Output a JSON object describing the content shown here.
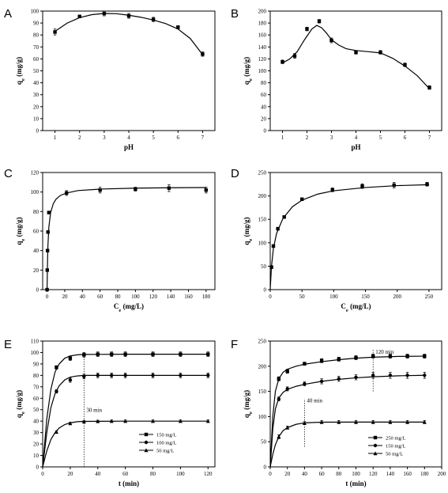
{
  "chart_data": [
    {
      "panel": "A",
      "type": "line",
      "xlabel": "pH",
      "ylabel": "q_e (mg/g)",
      "xlim": [
        0.5,
        7.5
      ],
      "ylim": [
        0,
        100
      ],
      "xticks": [
        1,
        2,
        3,
        4,
        5,
        6,
        7
      ],
      "yticks": [
        0,
        10,
        20,
        30,
        40,
        50,
        60,
        70,
        80,
        90,
        100
      ],
      "series": [
        {
          "marker": "square",
          "x": [
            1,
            2,
            3,
            4,
            5,
            6,
            7
          ],
          "y": [
            82.5,
            95.5,
            98,
            96,
            93,
            86.5,
            64
          ],
          "err": [
            2.5,
            1.2,
            2.0,
            2.0,
            1.8,
            1.2,
            1.8
          ],
          "fit": [
            [
              1,
              83
            ],
            [
              1.5,
              90
            ],
            [
              2,
              94.5
            ],
            [
              2.5,
              97
            ],
            [
              3,
              98
            ],
            [
              3.5,
              97.8
            ],
            [
              4,
              96.5
            ],
            [
              4.5,
              94.8
            ],
            [
              5,
              92.5
            ],
            [
              5.5,
              89.5
            ],
            [
              6,
              85
            ],
            [
              6.5,
              77
            ],
            [
              7,
              63.5
            ]
          ]
        }
      ]
    },
    {
      "panel": "B",
      "type": "line",
      "xlabel": "pH",
      "ylabel": "q_e (mg/g)",
      "xlim": [
        0.5,
        7.5
      ],
      "ylim": [
        0,
        200
      ],
      "xticks": [
        1,
        2,
        3,
        4,
        5,
        6,
        7
      ],
      "yticks": [
        0,
        20,
        40,
        60,
        80,
        100,
        120,
        140,
        160,
        180,
        200
      ],
      "series": [
        {
          "marker": "square",
          "x": [
            1,
            1.5,
            2,
            2.5,
            3,
            4,
            5,
            6,
            7
          ],
          "y": [
            115,
            125,
            170,
            183,
            151,
            131,
            131,
            110,
            72
          ],
          "err": [
            3,
            4,
            3,
            3,
            4,
            3,
            3,
            3,
            3
          ],
          "fit": [
            [
              1,
              113
            ],
            [
              1.3,
              120
            ],
            [
              1.6,
              132
            ],
            [
              1.9,
              152
            ],
            [
              2.2,
              170
            ],
            [
              2.4,
              176
            ],
            [
              2.6,
              172
            ],
            [
              2.8,
              163
            ],
            [
              3,
              152
            ],
            [
              3.3,
              143
            ],
            [
              3.6,
              137
            ],
            [
              4,
              134
            ],
            [
              4.5,
              132
            ],
            [
              5,
              130
            ],
            [
              5.5,
              121
            ],
            [
              6,
              108
            ],
            [
              6.5,
              92
            ],
            [
              7,
              70
            ]
          ]
        }
      ]
    },
    {
      "panel": "C",
      "type": "scatter",
      "xlabel": "C_e (mg/L)",
      "ylabel": "q_e (mg/g)",
      "xlim": [
        -5,
        190
      ],
      "ylim": [
        0,
        120
      ],
      "xticks": [
        0,
        20,
        40,
        60,
        80,
        100,
        120,
        140,
        160,
        180
      ],
      "yticks": [
        0,
        20,
        40,
        60,
        80,
        100,
        120
      ],
      "series": [
        {
          "marker": "square",
          "x": [
            0,
            0.2,
            0.5,
            1,
            2,
            22,
            60,
            100,
            138,
            180
          ],
          "y": [
            0,
            20,
            40,
            59,
            79,
            99,
            102,
            103,
            104,
            102
          ],
          "err": [
            0,
            0,
            0,
            0,
            0,
            2.5,
            3,
            2,
            3.5,
            3
          ],
          "fit": [
            [
              0,
              0
            ],
            [
              0.3,
              18
            ],
            [
              0.6,
              33
            ],
            [
              1,
              46
            ],
            [
              2,
              64
            ],
            [
              4,
              79
            ],
            [
              7,
              88
            ],
            [
              10,
              92.5
            ],
            [
              15,
              96.5
            ],
            [
              22,
              99
            ],
            [
              35,
              101.5
            ],
            [
              60,
              103
            ],
            [
              100,
              104
            ],
            [
              140,
              104.4
            ],
            [
              180,
              104.6
            ]
          ]
        }
      ]
    },
    {
      "panel": "D",
      "type": "scatter",
      "xlabel": "C_e (mg/L)",
      "ylabel": "q_e (mg/g)",
      "xlim": [
        0,
        270
      ],
      "ylim": [
        0,
        250
      ],
      "xticks": [
        0,
        50,
        100,
        150,
        200,
        250
      ],
      "yticks": [
        0,
        50,
        100,
        150,
        200,
        250
      ],
      "series": [
        {
          "marker": "square",
          "x": [
            2,
            5,
            12,
            22,
            50,
            98,
            145,
            195,
            247
          ],
          "y": [
            48,
            93,
            130,
            155,
            193,
            213,
            221,
            223,
            225
          ],
          "err": [
            3,
            3,
            3,
            3,
            3,
            4,
            5,
            6,
            4
          ],
          "fit": [
            [
              0,
              0
            ],
            [
              2,
              50
            ],
            [
              5,
              88
            ],
            [
              10,
              120
            ],
            [
              20,
              152
            ],
            [
              35,
              177
            ],
            [
              50,
              191
            ],
            [
              75,
              204
            ],
            [
              100,
              211
            ],
            [
              150,
              218
            ],
            [
              200,
              222
            ],
            [
              250,
              224
            ]
          ]
        }
      ]
    },
    {
      "panel": "E",
      "type": "line",
      "xlabel": "t (min)",
      "ylabel": "q_e (mg/g)",
      "xlim": [
        0,
        125
      ],
      "ylim": [
        0,
        110
      ],
      "xticks": [
        0,
        20,
        40,
        60,
        80,
        100,
        120
      ],
      "yticks": [
        0,
        10,
        20,
        30,
        40,
        50,
        60,
        70,
        80,
        90,
        100,
        110
      ],
      "vline": {
        "x": 30,
        "label": "30 min",
        "ymin": 0,
        "ymax": 100,
        "label_y": 48
      },
      "legend": {
        "position": "bottom-right"
      },
      "series": [
        {
          "name": "150 mg/L",
          "marker": "square",
          "x": [
            10,
            20,
            30,
            40,
            50,
            60,
            80,
            100,
            120
          ],
          "y": [
            87,
            95,
            98,
            98.5,
            98.5,
            98.5,
            98.5,
            98.5,
            98.5
          ],
          "err": [
            1.5,
            2,
            2,
            2,
            2,
            2,
            2,
            2,
            2
          ],
          "fit": [
            [
              0,
              0
            ],
            [
              3,
              42
            ],
            [
              6,
              68
            ],
            [
              9,
              83
            ],
            [
              12,
              90
            ],
            [
              16,
              95
            ],
            [
              20,
              97
            ],
            [
              25,
              98
            ],
            [
              30,
              98.3
            ],
            [
              60,
              98.5
            ],
            [
              120,
              98.5
            ]
          ]
        },
        {
          "name": "100 mg/L",
          "marker": "circle",
          "x": [
            10,
            20,
            30,
            40,
            50,
            60,
            80,
            100,
            120
          ],
          "y": [
            66,
            76,
            79,
            80,
            80,
            80,
            80,
            80,
            80
          ],
          "err": [
            1.5,
            2,
            2,
            2,
            2,
            2,
            2,
            2,
            2
          ],
          "fit": [
            [
              0,
              0
            ],
            [
              3,
              30
            ],
            [
              6,
              52
            ],
            [
              9,
              64
            ],
            [
              12,
              71
            ],
            [
              16,
              76
            ],
            [
              20,
              78.5
            ],
            [
              25,
              79.5
            ],
            [
              30,
              80
            ],
            [
              60,
              80
            ],
            [
              120,
              80
            ]
          ]
        },
        {
          "name": "50 mg/L",
          "marker": "triangle",
          "x": [
            10,
            20,
            30,
            40,
            50,
            60,
            80,
            100,
            120
          ],
          "y": [
            30.5,
            38,
            39.5,
            39.8,
            40,
            40,
            40,
            40,
            40
          ],
          "err": [
            1,
            1,
            1,
            1,
            1,
            1,
            1,
            1,
            1
          ],
          "fit": [
            [
              0,
              0
            ],
            [
              3,
              14
            ],
            [
              6,
              24
            ],
            [
              9,
              30
            ],
            [
              12,
              34
            ],
            [
              16,
              37
            ],
            [
              20,
              38.5
            ],
            [
              25,
              39.5
            ],
            [
              30,
              39.8
            ],
            [
              60,
              40
            ],
            [
              120,
              40
            ]
          ]
        }
      ]
    },
    {
      "panel": "F",
      "type": "line",
      "xlabel": "t (min)",
      "ylabel": "q_e (mg/g)",
      "xlim": [
        0,
        200
      ],
      "ylim": [
        0,
        250
      ],
      "xticks": [
        0,
        20,
        40,
        60,
        80,
        100,
        120,
        140,
        160,
        180,
        200
      ],
      "yticks": [
        0,
        50,
        100,
        150,
        200,
        250
      ],
      "vlines": [
        {
          "x": 120,
          "label": "120 min",
          "ymin": 150,
          "ymax": 235,
          "label_y": 225
        },
        {
          "x": 40,
          "label": "40 min",
          "ymin": 40,
          "ymax": 135,
          "label_y": 128
        }
      ],
      "legend": {
        "position": "bottom-right"
      },
      "series": [
        {
          "name": "250 mg/L",
          "marker": "square",
          "x": [
            10,
            20,
            40,
            60,
            80,
            100,
            120,
            140,
            160,
            180
          ],
          "y": [
            175,
            190,
            205,
            211,
            214,
            217,
            220,
            220,
            220,
            220
          ],
          "err": [
            4,
            4,
            3,
            4,
            4,
            4,
            4,
            4,
            4,
            4
          ],
          "fit": [
            [
              0,
              0
            ],
            [
              3,
              100
            ],
            [
              6,
              150
            ],
            [
              10,
              175
            ],
            [
              15,
              188
            ],
            [
              20,
              194
            ],
            [
              30,
              200
            ],
            [
              40,
              204
            ],
            [
              60,
              209
            ],
            [
              80,
              213
            ],
            [
              100,
              216
            ],
            [
              120,
              218
            ],
            [
              150,
              219.5
            ],
            [
              180,
              220
            ]
          ]
        },
        {
          "name": "150 mg/L",
          "marker": "circle",
          "x": [
            10,
            20,
            40,
            60,
            80,
            100,
            120,
            140,
            160,
            180
          ],
          "y": [
            135,
            155,
            165,
            170,
            175,
            178,
            182,
            182,
            182,
            182
          ],
          "err": [
            4,
            4,
            4,
            5,
            5,
            5,
            6,
            6,
            6,
            6
          ],
          "fit": [
            [
              0,
              0
            ],
            [
              3,
              75
            ],
            [
              6,
              115
            ],
            [
              10,
              137
            ],
            [
              15,
              148
            ],
            [
              20,
              154
            ],
            [
              30,
              160
            ],
            [
              40,
              164
            ],
            [
              60,
              170
            ],
            [
              80,
              174
            ],
            [
              100,
              177
            ],
            [
              120,
              179
            ],
            [
              150,
              181
            ],
            [
              180,
              182
            ]
          ]
        },
        {
          "name": "50 mg/L",
          "marker": "triangle",
          "x": [
            10,
            20,
            40,
            60,
            80,
            100,
            120,
            140,
            160,
            180
          ],
          "y": [
            60,
            78,
            87,
            89,
            89,
            89,
            89,
            89,
            89,
            89
          ],
          "err": [
            4,
            3,
            3,
            3,
            3,
            3,
            3,
            3,
            3,
            3
          ],
          "fit": [
            [
              0,
              0
            ],
            [
              3,
              25
            ],
            [
              6,
              44
            ],
            [
              10,
              60
            ],
            [
              15,
              72
            ],
            [
              20,
              78
            ],
            [
              30,
              84.5
            ],
            [
              40,
              87.5
            ],
            [
              60,
              88.8
            ],
            [
              100,
              89
            ],
            [
              180,
              89
            ]
          ]
        }
      ]
    }
  ]
}
